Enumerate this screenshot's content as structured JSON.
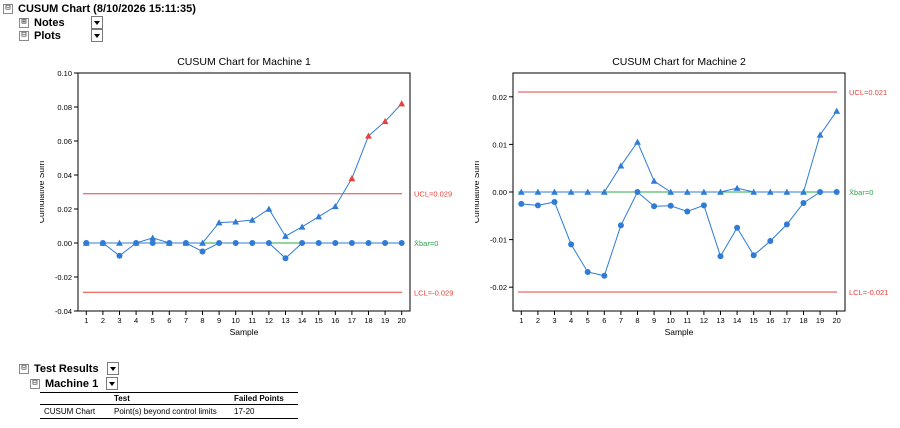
{
  "tree": {
    "root_label": "CUSUM Chart (8/10/2026 15:11:35)",
    "notes_label": "Notes",
    "plots_label": "Plots",
    "test_results_label": "Test Results",
    "machine_label": "Machine 1",
    "collapse_glyph": "⊟",
    "expand_glyph": "⊞"
  },
  "test_table": {
    "headers": [
      "",
      "Test",
      "Failed Points"
    ],
    "rows": [
      [
        "CUSUM Chart",
        "Point(s) beyond control limits",
        "17-20"
      ]
    ]
  },
  "colors": {
    "series": "#2f7bd6",
    "limit": "#e8403a",
    "center": "#28a745",
    "out": "#e8403a"
  },
  "chart_data": [
    {
      "type": "line",
      "title": "CUSUM Chart for Machine 1",
      "xlabel": "Sample",
      "ylabel": "Cumulative Sum",
      "xlim": [
        1,
        20
      ],
      "ylim": [
        -0.04,
        0.1
      ],
      "yticks": [
        -0.04,
        -0.02,
        0.0,
        0.02,
        0.04,
        0.06,
        0.08,
        0.1
      ],
      "ytick_labels": [
        "-0.04",
        "-0.02",
        "0.00",
        "0.02",
        "0.04",
        "0.06",
        "0.08",
        "0.10"
      ],
      "x": [
        1,
        2,
        3,
        4,
        5,
        6,
        7,
        8,
        9,
        10,
        11,
        12,
        13,
        14,
        15,
        16,
        17,
        18,
        19,
        20
      ],
      "ucl": 0.029,
      "lcl": -0.029,
      "center": 0,
      "ucl_label": "UCL=0.029",
      "lcl_label": "LCL=-0.029",
      "center_label": "X̄bar=0",
      "series": [
        {
          "marker": "triangle",
          "values": [
            0,
            0,
            0,
            0,
            0.003,
            0,
            0,
            0,
            0.012,
            0.0125,
            0.0135,
            0.02,
            0.004,
            0.0095,
            0.0155,
            0.0215,
            0.038,
            0.063,
            0.0715,
            0.082
          ],
          "out_of_control": [
            17,
            18,
            19,
            20
          ]
        },
        {
          "marker": "circle",
          "values": [
            0,
            0,
            -0.0075,
            0,
            0,
            0,
            0,
            -0.005,
            0,
            0,
            0,
            0,
            -0.009,
            0,
            0,
            0,
            0,
            0,
            0,
            0
          ],
          "out_of_control": []
        }
      ]
    },
    {
      "type": "line",
      "title": "CUSUM Chart for Machine 2",
      "xlabel": "Sample",
      "ylabel": "Cumulative Sum",
      "xlim": [
        1,
        20
      ],
      "ylim": [
        -0.025,
        0.025
      ],
      "yticks": [
        -0.02,
        -0.01,
        0.0,
        0.01,
        0.02
      ],
      "ytick_labels": [
        "-0.02",
        "-0.01",
        "0.00",
        "0.01",
        "0.02"
      ],
      "x": [
        1,
        2,
        3,
        4,
        5,
        6,
        7,
        8,
        9,
        10,
        11,
        12,
        13,
        14,
        15,
        16,
        17,
        18,
        19,
        20
      ],
      "ucl": 0.021,
      "lcl": -0.021,
      "center": 0,
      "ucl_label": "UCL=0.021",
      "lcl_label": "LCL=-0.021",
      "center_label": "X̄bar=0",
      "series": [
        {
          "marker": "triangle",
          "values": [
            0,
            0,
            0,
            0,
            0,
            0,
            0.0055,
            0.0105,
            0.0023,
            0,
            0,
            0,
            0,
            0.0008,
            0,
            0,
            0,
            0,
            0.012,
            0.017
          ],
          "out_of_control": []
        },
        {
          "marker": "circle",
          "values": [
            -0.0025,
            -0.0028,
            -0.0021,
            -0.011,
            -0.0168,
            -0.0176,
            -0.007,
            0,
            -0.003,
            -0.0029,
            -0.0041,
            -0.0028,
            -0.0135,
            -0.0075,
            -0.0133,
            -0.0103,
            -0.0068,
            -0.0023,
            0,
            0
          ],
          "out_of_control": []
        }
      ]
    }
  ]
}
